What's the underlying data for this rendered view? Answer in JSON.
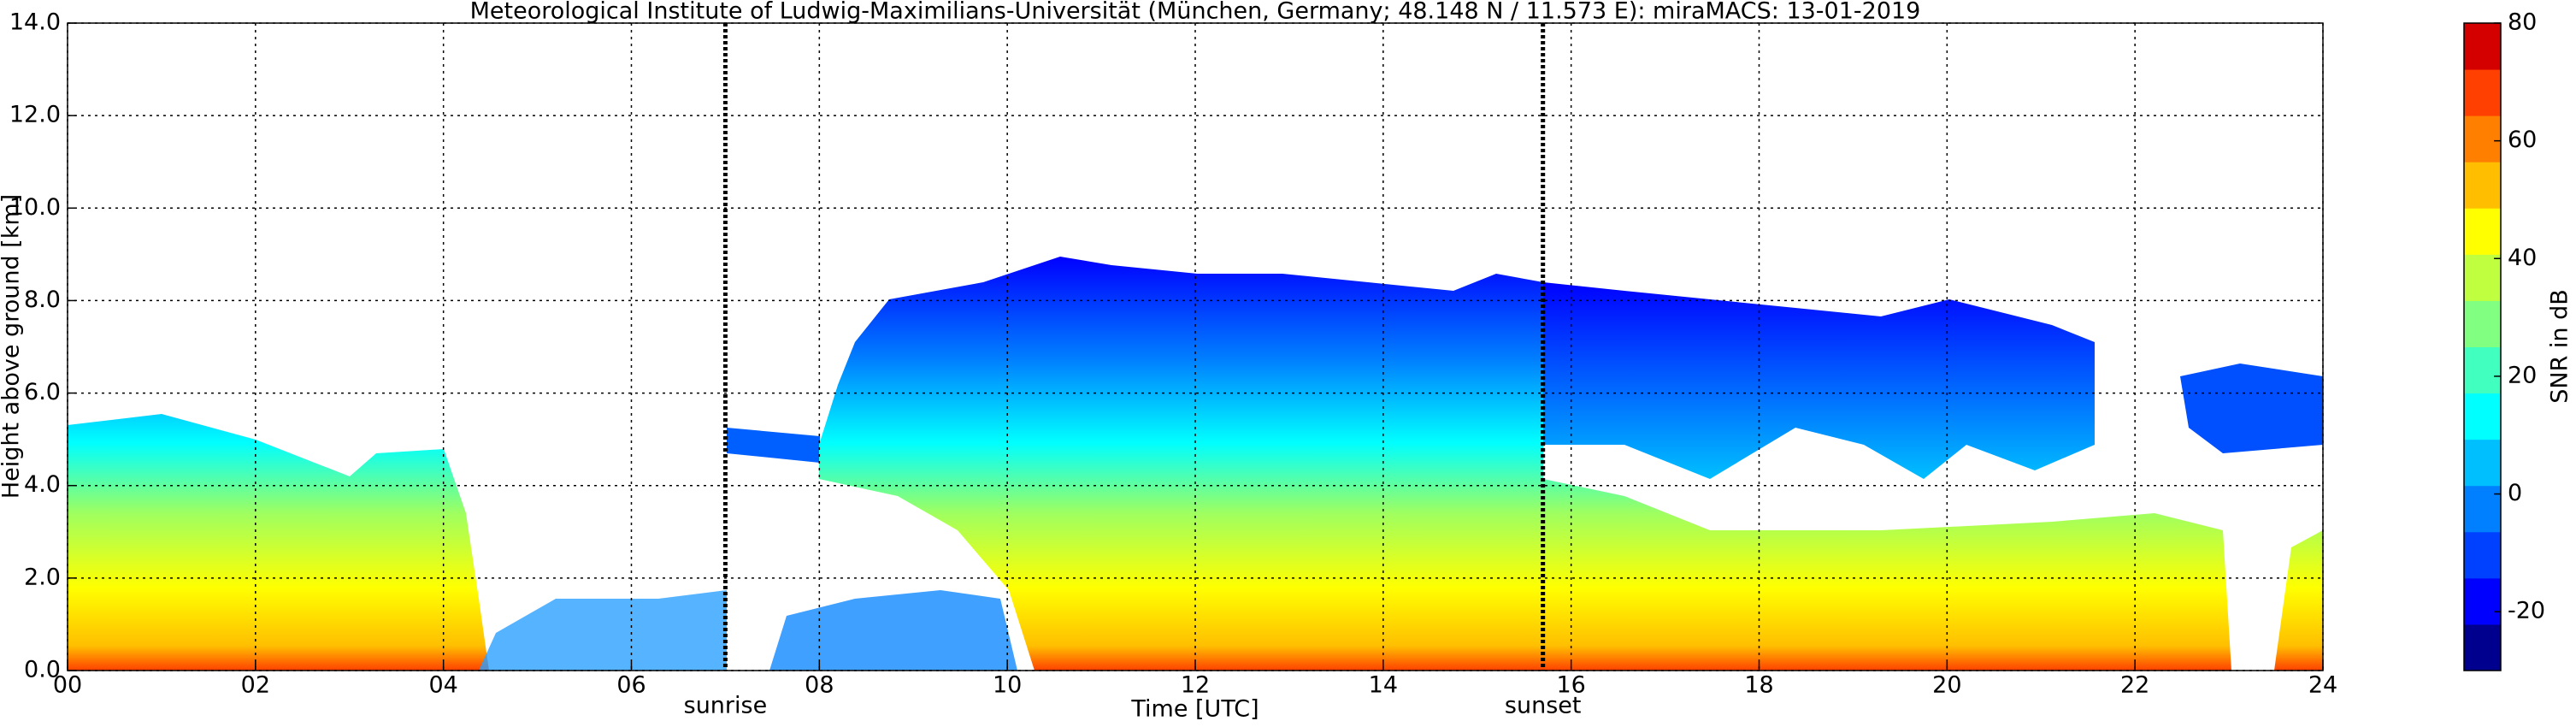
{
  "chart_data": {
    "type": "heatmap",
    "title": "Meteorological Institute of Ludwig-Maximilians-Universität (München, Germany; 48.148 N / 11.573 E):    miraMACS: 13-01-2019",
    "x_label": "Time [UTC]",
    "y_label": "Height above ground [km]",
    "xlim": [
      0,
      24
    ],
    "xticks": [
      {
        "value": 0,
        "label": "00"
      },
      {
        "value": 2,
        "label": "02"
      },
      {
        "value": 4,
        "label": "04"
      },
      {
        "value": 6,
        "label": "06"
      },
      {
        "value": 8,
        "label": "08"
      },
      10,
      12,
      14,
      16,
      18,
      20,
      22,
      24
    ],
    "ylim": [
      0,
      14
    ],
    "yticks": [
      {
        "value": 0,
        "label": "0.0"
      },
      {
        "value": 2,
        "label": "2.0"
      },
      {
        "value": 4,
        "label": "4.0"
      },
      {
        "value": 6,
        "label": "6.0"
      },
      {
        "value": 8,
        "label": "8.0"
      },
      {
        "value": 10,
        "label": "10.0"
      },
      {
        "value": 12,
        "label": "12.0"
      },
      {
        "value": 14,
        "label": "14.0"
      }
    ],
    "grid": true,
    "annotations": [
      {
        "text": "sunrise",
        "x": 7.0
      },
      {
        "text": "sunset",
        "x": 15.7
      }
    ],
    "colorbar": {
      "label": "SNR in dB",
      "clim": [
        -30,
        80
      ],
      "ticks": [
        -20,
        0,
        20,
        40,
        60,
        80
      ],
      "colors": [
        "#00008f",
        "#0000ff",
        "#0040ff",
        "#0080ff",
        "#00bfff",
        "#00ffff",
        "#40ffbf",
        "#80ff80",
        "#bfff40",
        "#ffff00",
        "#ffbf00",
        "#ff8000",
        "#ff4000",
        "#d40000"
      ]
    }
  }
}
